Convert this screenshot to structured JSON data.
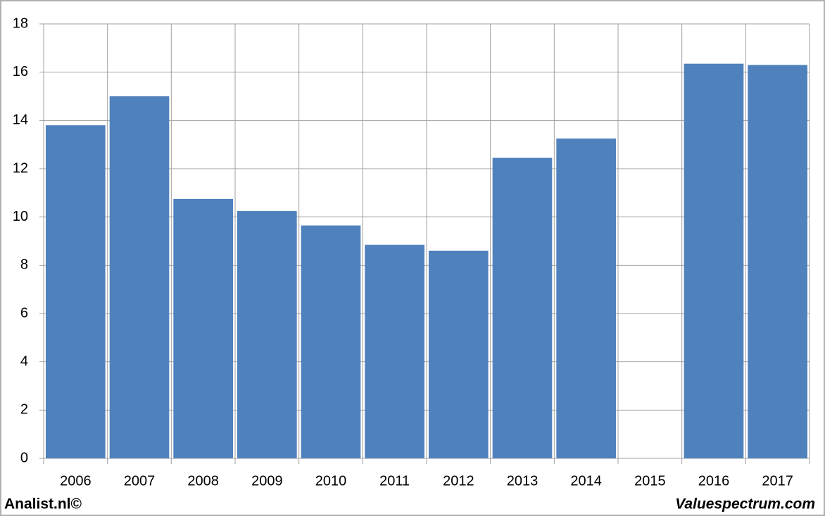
{
  "chart_data": {
    "type": "bar",
    "categories": [
      "2006",
      "2007",
      "2008",
      "2009",
      "2010",
      "2011",
      "2012",
      "2013",
      "2014",
      "2015",
      "2016",
      "2017"
    ],
    "values": [
      13.8,
      15.0,
      10.75,
      10.25,
      9.65,
      8.85,
      8.6,
      12.45,
      13.25,
      null,
      16.35,
      16.3
    ],
    "color": "#4f81bd",
    "ylim": [
      0,
      18
    ],
    "yticks": [
      0,
      2,
      4,
      6,
      8,
      10,
      12,
      14,
      16,
      18
    ],
    "grid": true,
    "annotations": [
      "Analist.nl©",
      "Valuespectrum.com"
    ]
  }
}
